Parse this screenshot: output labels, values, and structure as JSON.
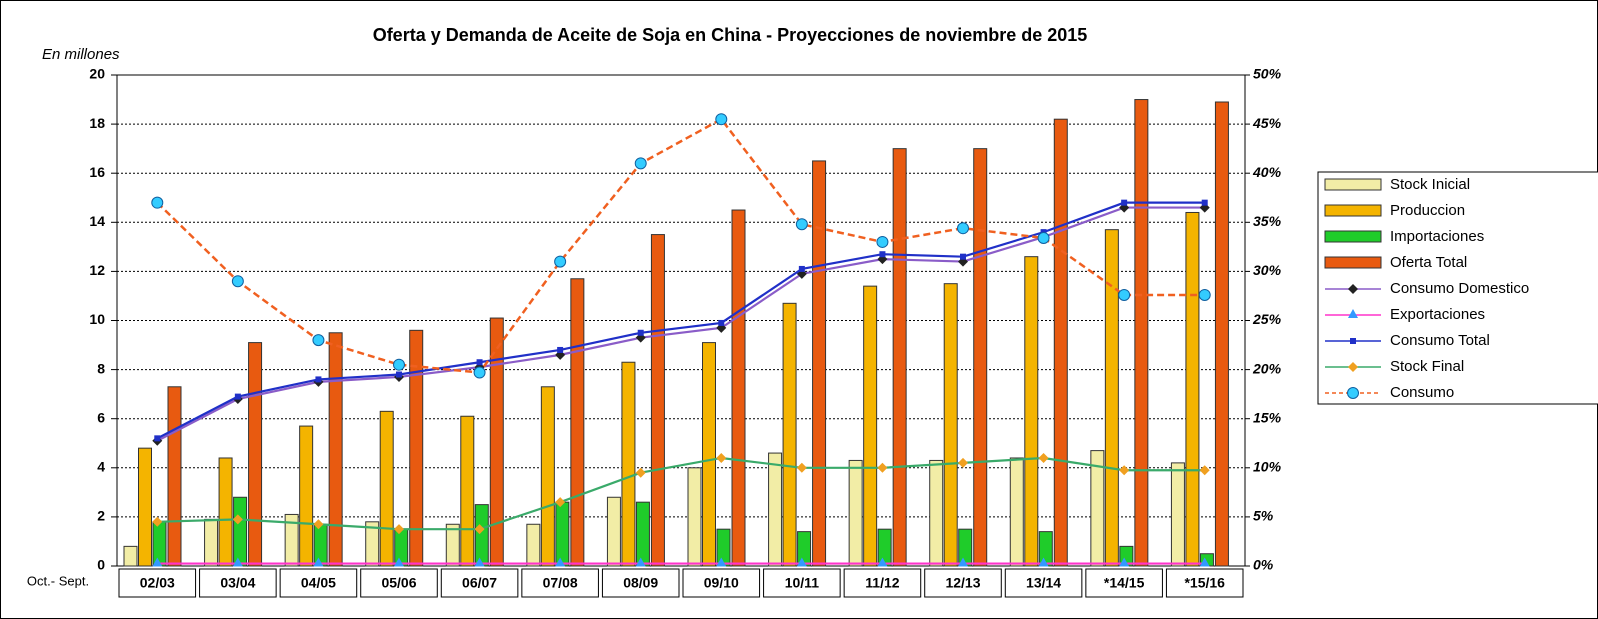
{
  "chart_data": {
    "type": "bar",
    "title": "Oferta y Demanda de Aceite de Soja en China - Proyecciones de noviembre de 2015",
    "y_axis_label": "En millones",
    "x_axis_label": "Oct.- Sept.",
    "categories": [
      "02/03",
      "03/04",
      "04/05",
      "05/06",
      "06/07",
      "07/08",
      "08/09",
      "09/10",
      "10/11",
      "11/12",
      "12/13",
      "13/14",
      "*14/15",
      "*15/16"
    ],
    "ylim": [
      0,
      20
    ],
    "yticks": [
      0,
      2,
      4,
      6,
      8,
      10,
      12,
      14,
      16,
      18,
      20
    ],
    "y2lim": [
      0,
      50
    ],
    "y2ticks": [
      {
        "value": 0,
        "label": "0%"
      },
      {
        "value": 5,
        "label": "5%"
      },
      {
        "value": 10,
        "label": "10%"
      },
      {
        "value": 15,
        "label": "15%"
      },
      {
        "value": 20,
        "label": "20%"
      },
      {
        "value": 25,
        "label": "25%"
      },
      {
        "value": 30,
        "label": "30%"
      },
      {
        "value": 35,
        "label": "35%"
      },
      {
        "value": 40,
        "label": "40%"
      },
      {
        "value": 45,
        "label": "45%"
      },
      {
        "value": 50,
        "label": "50%"
      }
    ],
    "grid": true,
    "legend": "right",
    "series": [
      {
        "name": "Stock Inicial",
        "type": "bar",
        "color": "#f2eda6",
        "values": [
          0.8,
          1.9,
          2.1,
          1.8,
          1.7,
          1.7,
          2.8,
          4.0,
          4.6,
          4.3,
          4.3,
          4.4,
          4.7,
          4.2
        ]
      },
      {
        "name": "Produccion",
        "type": "bar",
        "color": "#f4b400",
        "values": [
          4.8,
          4.4,
          5.7,
          6.3,
          6.1,
          7.3,
          8.3,
          9.1,
          10.7,
          11.4,
          11.5,
          12.6,
          13.7,
          14.4
        ]
      },
      {
        "name": " Importaciones",
        "type": "bar",
        "color": "#1fcc2a",
        "values": [
          1.8,
          2.8,
          1.7,
          1.5,
          2.5,
          2.6,
          2.6,
          1.5,
          1.4,
          1.5,
          1.5,
          1.4,
          0.8,
          0.5
        ]
      },
      {
        "name": "Oferta Total",
        "type": "bar",
        "color": "#e85a10",
        "values": [
          7.3,
          9.1,
          9.5,
          9.6,
          10.1,
          11.7,
          13.5,
          14.5,
          16.5,
          17.0,
          17.0,
          18.2,
          19.0,
          18.9
        ]
      },
      {
        "name": "Consumo Domestico",
        "type": "line",
        "color": "#8a5cc8",
        "marker": "diamond",
        "values": [
          5.1,
          6.8,
          7.5,
          7.7,
          8.1,
          8.6,
          9.3,
          9.7,
          11.9,
          12.5,
          12.4,
          13.4,
          14.6,
          14.6
        ]
      },
      {
        "name": " Exportaciones",
        "type": "line",
        "color": "#ff33cc",
        "marker": "triangle",
        "values": [
          0.1,
          0.1,
          0.1,
          0.1,
          0.1,
          0.1,
          0.1,
          0.1,
          0.1,
          0.1,
          0.1,
          0.1,
          0.1,
          0.1
        ]
      },
      {
        "name": "Consumo Total",
        "type": "line",
        "color": "#2030c8",
        "marker": "square",
        "values": [
          5.2,
          6.9,
          7.6,
          7.8,
          8.3,
          8.8,
          9.5,
          9.9,
          12.1,
          12.7,
          12.6,
          13.6,
          14.8,
          14.8
        ]
      },
      {
        "name": "Stock Final",
        "type": "line",
        "color": "#3aaa6a",
        "marker": "diamond",
        "values": [
          1.8,
          1.9,
          1.7,
          1.5,
          1.5,
          2.6,
          3.8,
          4.4,
          4.0,
          4.0,
          4.2,
          4.4,
          3.9,
          3.9
        ]
      },
      {
        "name": "Consumo",
        "type": "line",
        "color": "#f06020",
        "marker": "circle",
        "line_style": "dashed",
        "axis": "y2",
        "values": [
          37,
          29,
          23,
          20.5,
          19.7,
          31,
          41,
          45.5,
          34.8,
          33,
          34.4,
          33.4,
          27.6,
          27.6
        ]
      }
    ]
  }
}
